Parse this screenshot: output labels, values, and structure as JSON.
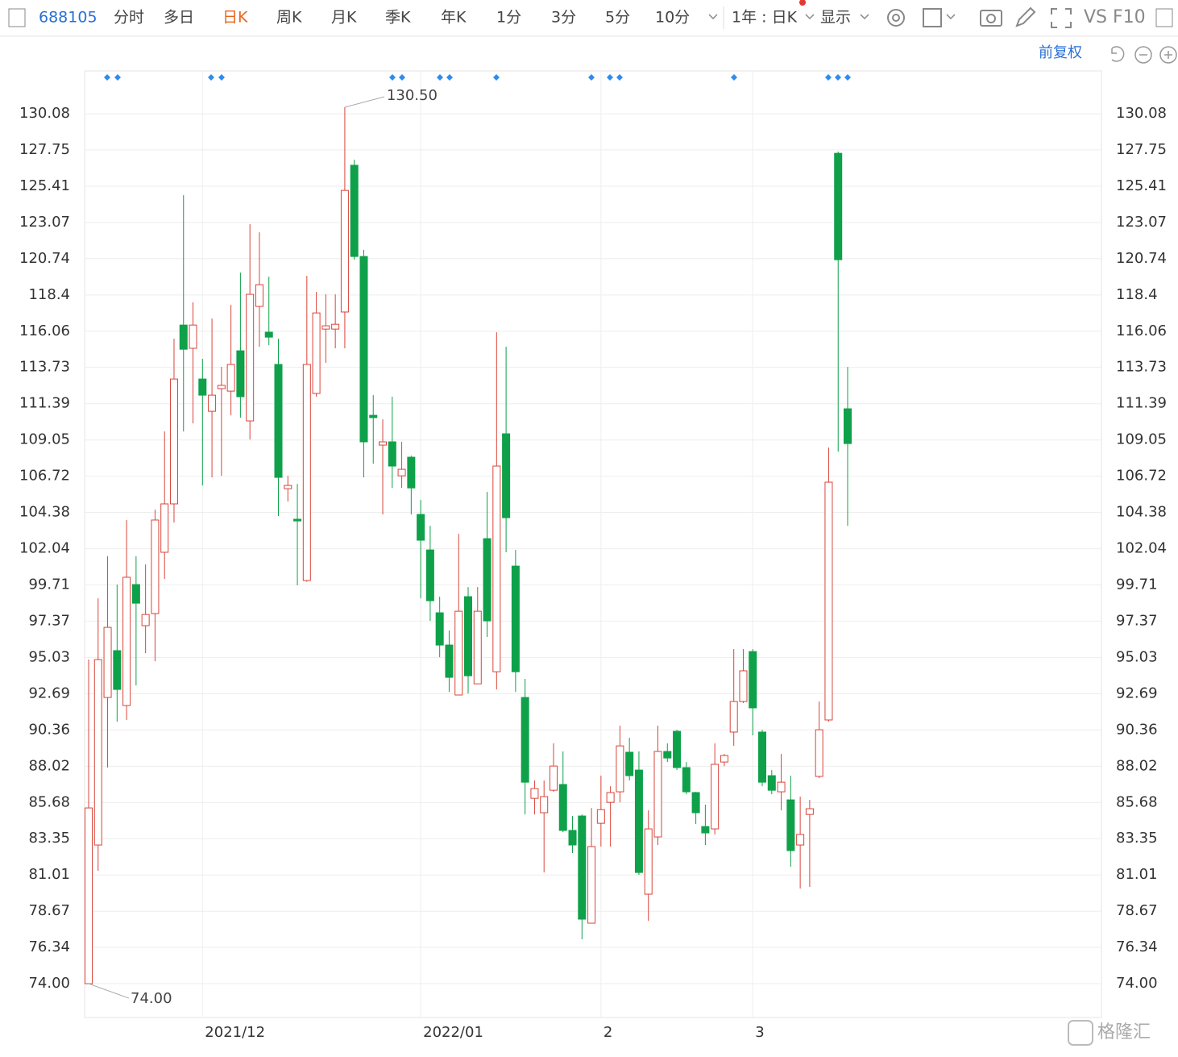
{
  "toolbar": {
    "code": "688105",
    "tabs": [
      "分时",
      "多日",
      "日K",
      "周K",
      "月K",
      "季K",
      "年K",
      "1分",
      "3分",
      "5分",
      "10分"
    ],
    "active_tab": "日K",
    "period": "1年 : 日K",
    "display": "显示",
    "vs": "VS",
    "f10": "F10",
    "adjust": "前复权"
  },
  "chart_data": {
    "type": "candlestick",
    "categories": [
      null,
      null,
      null,
      null,
      null,
      null,
      null,
      null,
      null,
      null,
      null,
      null,
      "2021/12",
      null,
      null,
      null,
      null,
      null,
      null,
      null,
      null,
      null,
      null,
      null,
      null,
      null,
      null,
      null,
      null,
      null,
      null,
      null,
      null,
      null,
      null,
      "2022/01",
      null,
      null,
      null,
      null,
      null,
      null,
      null,
      null,
      null,
      null,
      null,
      null,
      null,
      null,
      null,
      null,
      null,
      null,
      "2",
      null,
      null,
      null,
      null,
      null,
      null,
      null,
      null,
      null,
      null,
      null,
      null,
      null,
      null,
      null,
      "3",
      null,
      null,
      null,
      null,
      null,
      null,
      null,
      null,
      null,
      null
    ],
    "open": [
      74.0,
      82.94,
      92.45,
      95.47,
      91.93,
      99.73,
      97.08,
      97.86,
      101.81,
      104.93,
      116.46,
      114.96,
      112.98,
      110.9,
      112.36,
      112.2,
      114.8,
      110.28,
      117.66,
      116.0,
      113.92,
      105.91,
      103.94,
      99.99,
      112.05,
      116.2,
      116.2,
      117.3,
      126.76,
      120.88,
      110.64,
      108.72,
      108.93,
      106.74,
      107.94,
      104.25,
      101.96,
      97.91,
      95.83,
      92.61,
      98.95,
      93.33,
      102.69,
      94.11,
      109.45,
      100.92,
      92.45,
      85.95,
      85.02,
      86.47,
      86.84,
      83.88,
      84.81,
      77.9,
      84.34,
      85.69,
      86.37,
      88.92,
      87.77,
      79.77,
      83.46,
      88.97,
      90.27,
      87.93,
      86.32,
      84.13,
      83.98,
      88.29,
      90.22,
      92.19,
      95.41,
      90.22,
      87.41,
      86.37,
      85.85,
      82.94,
      84.91,
      87.36,
      91.0,
      127.53,
      111.06
    ],
    "high": [
      94.9,
      98.84,
      101.55,
      99.73,
      103.89,
      101.55,
      101.03,
      104.56,
      109.6,
      115.58,
      124.83,
      117.92,
      114.28,
      116.88,
      113.76,
      117.76,
      119.84,
      122.96,
      122.44,
      119.58,
      115.58,
      106.74,
      106.22,
      119.63,
      118.6,
      118.44,
      118.44,
      130.5,
      127.12,
      121.3,
      111.94,
      110.38,
      111.84,
      108.93,
      108.04,
      105.18,
      103.52,
      98.95,
      96.77,
      103.0,
      99.57,
      99.57,
      105.7,
      115.99,
      115.06,
      101.96,
      93.65,
      87.1,
      87.1,
      89.49,
      88.97,
      84.81,
      84.91,
      85.33,
      87.41,
      86.73,
      90.63,
      89.85,
      88.97,
      85.17,
      90.63,
      89.49,
      90.37,
      88.29,
      86.37,
      85.54,
      89.49,
      88.81,
      95.57,
      95.57,
      95.57,
      90.37,
      87.77,
      88.81,
      87.41,
      86.06,
      85.85,
      92.19,
      108.56,
      127.64,
      113.76
    ],
    "low": [
      74.0,
      81.28,
      87.93,
      90.89,
      91.0,
      93.23,
      95.31,
      94.79,
      100.09,
      103.73,
      109.6,
      110.12,
      106.12,
      106.64,
      106.74,
      110.64,
      110.49,
      109.08,
      115.06,
      115.16,
      104.15,
      105.08,
      99.68,
      99.9,
      111.84,
      114.02,
      114.96,
      114.96,
      120.67,
      106.64,
      107.52,
      104.25,
      105.96,
      105.96,
      104.25,
      98.84,
      97.39,
      95.05,
      92.81,
      92.61,
      92.71,
      93.33,
      96.35,
      92.97,
      101.81,
      92.81,
      84.91,
      84.91,
      81.17,
      86.37,
      83.77,
      82.42,
      76.86,
      77.9,
      82.84,
      82.84,
      85.69,
      87.1,
      81.02,
      78.05,
      82.94,
      88.29,
      87.77,
      86.21,
      84.29,
      82.94,
      83.62,
      88.03,
      89.33,
      92.09,
      90.01,
      86.73,
      86.21,
      85.17,
      81.54,
      80.13,
      80.24,
      87.25,
      90.89,
      108.3,
      103.52
    ],
    "close": [
      85.33,
      94.89,
      96.97,
      92.97,
      100.2,
      98.53,
      97.8,
      103.89,
      104.93,
      112.98,
      114.9,
      116.46,
      111.94,
      111.94,
      112.57,
      113.92,
      111.84,
      118.44,
      119.06,
      115.68,
      106.64,
      106.12,
      103.83,
      113.92,
      117.24,
      116.41,
      116.51,
      125.14,
      120.88,
      108.93,
      110.49,
      108.93,
      107.37,
      107.16,
      105.96,
      102.59,
      98.69,
      95.83,
      93.75,
      98.01,
      93.85,
      98.01,
      97.39,
      107.37,
      104.04,
      94.11,
      86.99,
      86.58,
      86.06,
      88.03,
      83.88,
      82.94,
      78.16,
      82.84,
      85.22,
      86.32,
      89.33,
      87.41,
      81.17,
      83.98,
      88.97,
      88.55,
      87.93,
      86.37,
      85.02,
      83.72,
      88.14,
      88.71,
      92.19,
      94.17,
      91.78,
      86.99,
      86.47,
      86.99,
      82.58,
      83.62,
      85.28,
      90.37,
      106.33,
      120.67,
      108.82
    ],
    "up_color": "#d9453a",
    "down_color": "#0ea14a",
    "max_label": "130.50",
    "min_label": "74.00",
    "ylim": [
      71.82,
      132.84
    ],
    "yticks": [
      {
        "value": 74,
        "label": "74.00"
      },
      76.34,
      78.67,
      81.01,
      83.35,
      85.68,
      88.02,
      90.36,
      92.69,
      95.03,
      97.37,
      99.71,
      102.04,
      104.38,
      106.72,
      109.05,
      111.39,
      113.73,
      116.06,
      118.4,
      120.74,
      123.07,
      125.41,
      127.75,
      130.08
    ],
    "grid": true
  },
  "watermark": "格隆汇"
}
